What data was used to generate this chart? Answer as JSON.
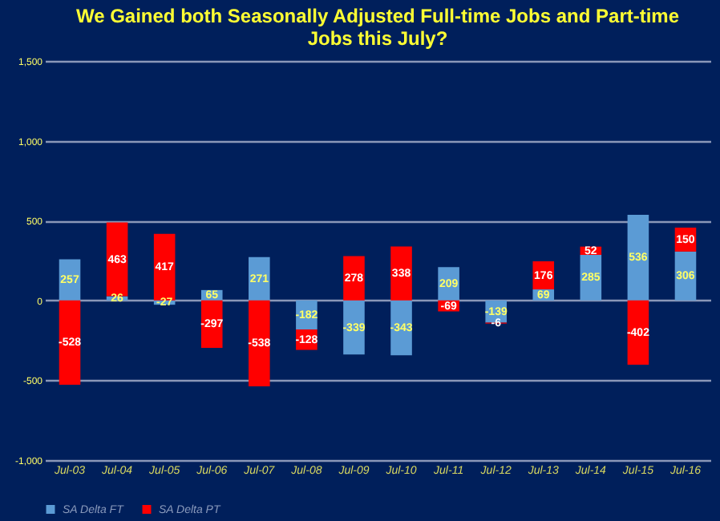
{
  "chart_data": {
    "type": "bar",
    "title": "We Gained both Seasonally Adjusted Full-time Jobs and Part-time Jobs this July?",
    "categories": [
      "Jul-03",
      "Jul-04",
      "Jul-05",
      "Jul-06",
      "Jul-07",
      "Jul-08",
      "Jul-09",
      "Jul-10",
      "Jul-11",
      "Jul-12",
      "Jul-13",
      "Jul-14",
      "Jul-15",
      "Jul-16"
    ],
    "series": [
      {
        "name": "SA Delta FT",
        "color": "#5b9bd5",
        "values": [
          257,
          26,
          -27,
          65,
          271,
          -182,
          -339,
          -343,
          209,
          -139,
          69,
          285,
          536,
          306
        ]
      },
      {
        "name": "SA Delta PT",
        "color": "#ff0000",
        "values": [
          -528,
          463,
          417,
          -297,
          -538,
          -128,
          278,
          338,
          -69,
          -6,
          176,
          52,
          -402,
          150
        ]
      }
    ],
    "stacked": true,
    "data_labels": true,
    "ylim": [
      -1000,
      1500
    ],
    "yticks": [
      {
        "value": -1000,
        "label": "-1,000"
      },
      -500,
      0,
      500,
      {
        "value": 1000,
        "label": "1,000"
      },
      {
        "value": 1500,
        "label": "1,500"
      }
    ],
    "grid": "y",
    "legend": "bottom"
  }
}
